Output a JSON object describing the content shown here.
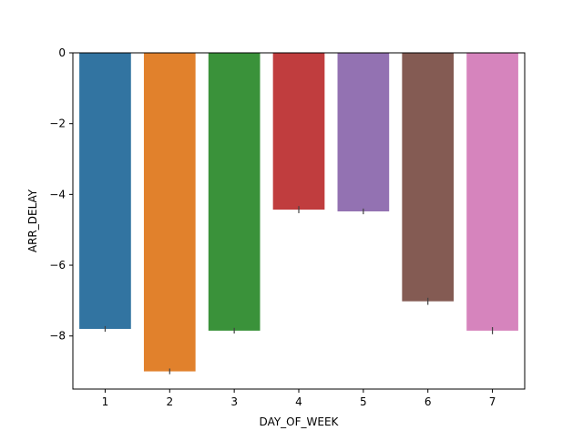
{
  "chart_data": {
    "type": "bar",
    "title": "",
    "xlabel": "DAY_OF_WEEK",
    "ylabel": "ARR_DELAY",
    "categories": [
      "1",
      "2",
      "3",
      "4",
      "5",
      "6",
      "7"
    ],
    "values": [
      -7.8,
      -9.0,
      -7.85,
      -4.43,
      -4.48,
      -7.02,
      -7.85
    ],
    "error_low": [
      -7.88,
      -9.08,
      -7.93,
      -4.53,
      -4.56,
      -7.12,
      -7.95
    ],
    "error_high": [
      -7.72,
      -8.92,
      -7.77,
      -4.33,
      -4.4,
      -6.92,
      -7.75
    ],
    "ylim": [
      -9.5,
      0
    ],
    "yticks": [
      0,
      -2,
      -4,
      -6,
      -8
    ],
    "ytick_labels": [
      "0",
      "−2",
      "−4",
      "−6",
      "−8"
    ],
    "colors": [
      "#3274a1",
      "#e1812c",
      "#3a923a",
      "#c03d3e",
      "#9372b2",
      "#845b53",
      "#d684bd"
    ],
    "grid": false,
    "legend": "none"
  }
}
